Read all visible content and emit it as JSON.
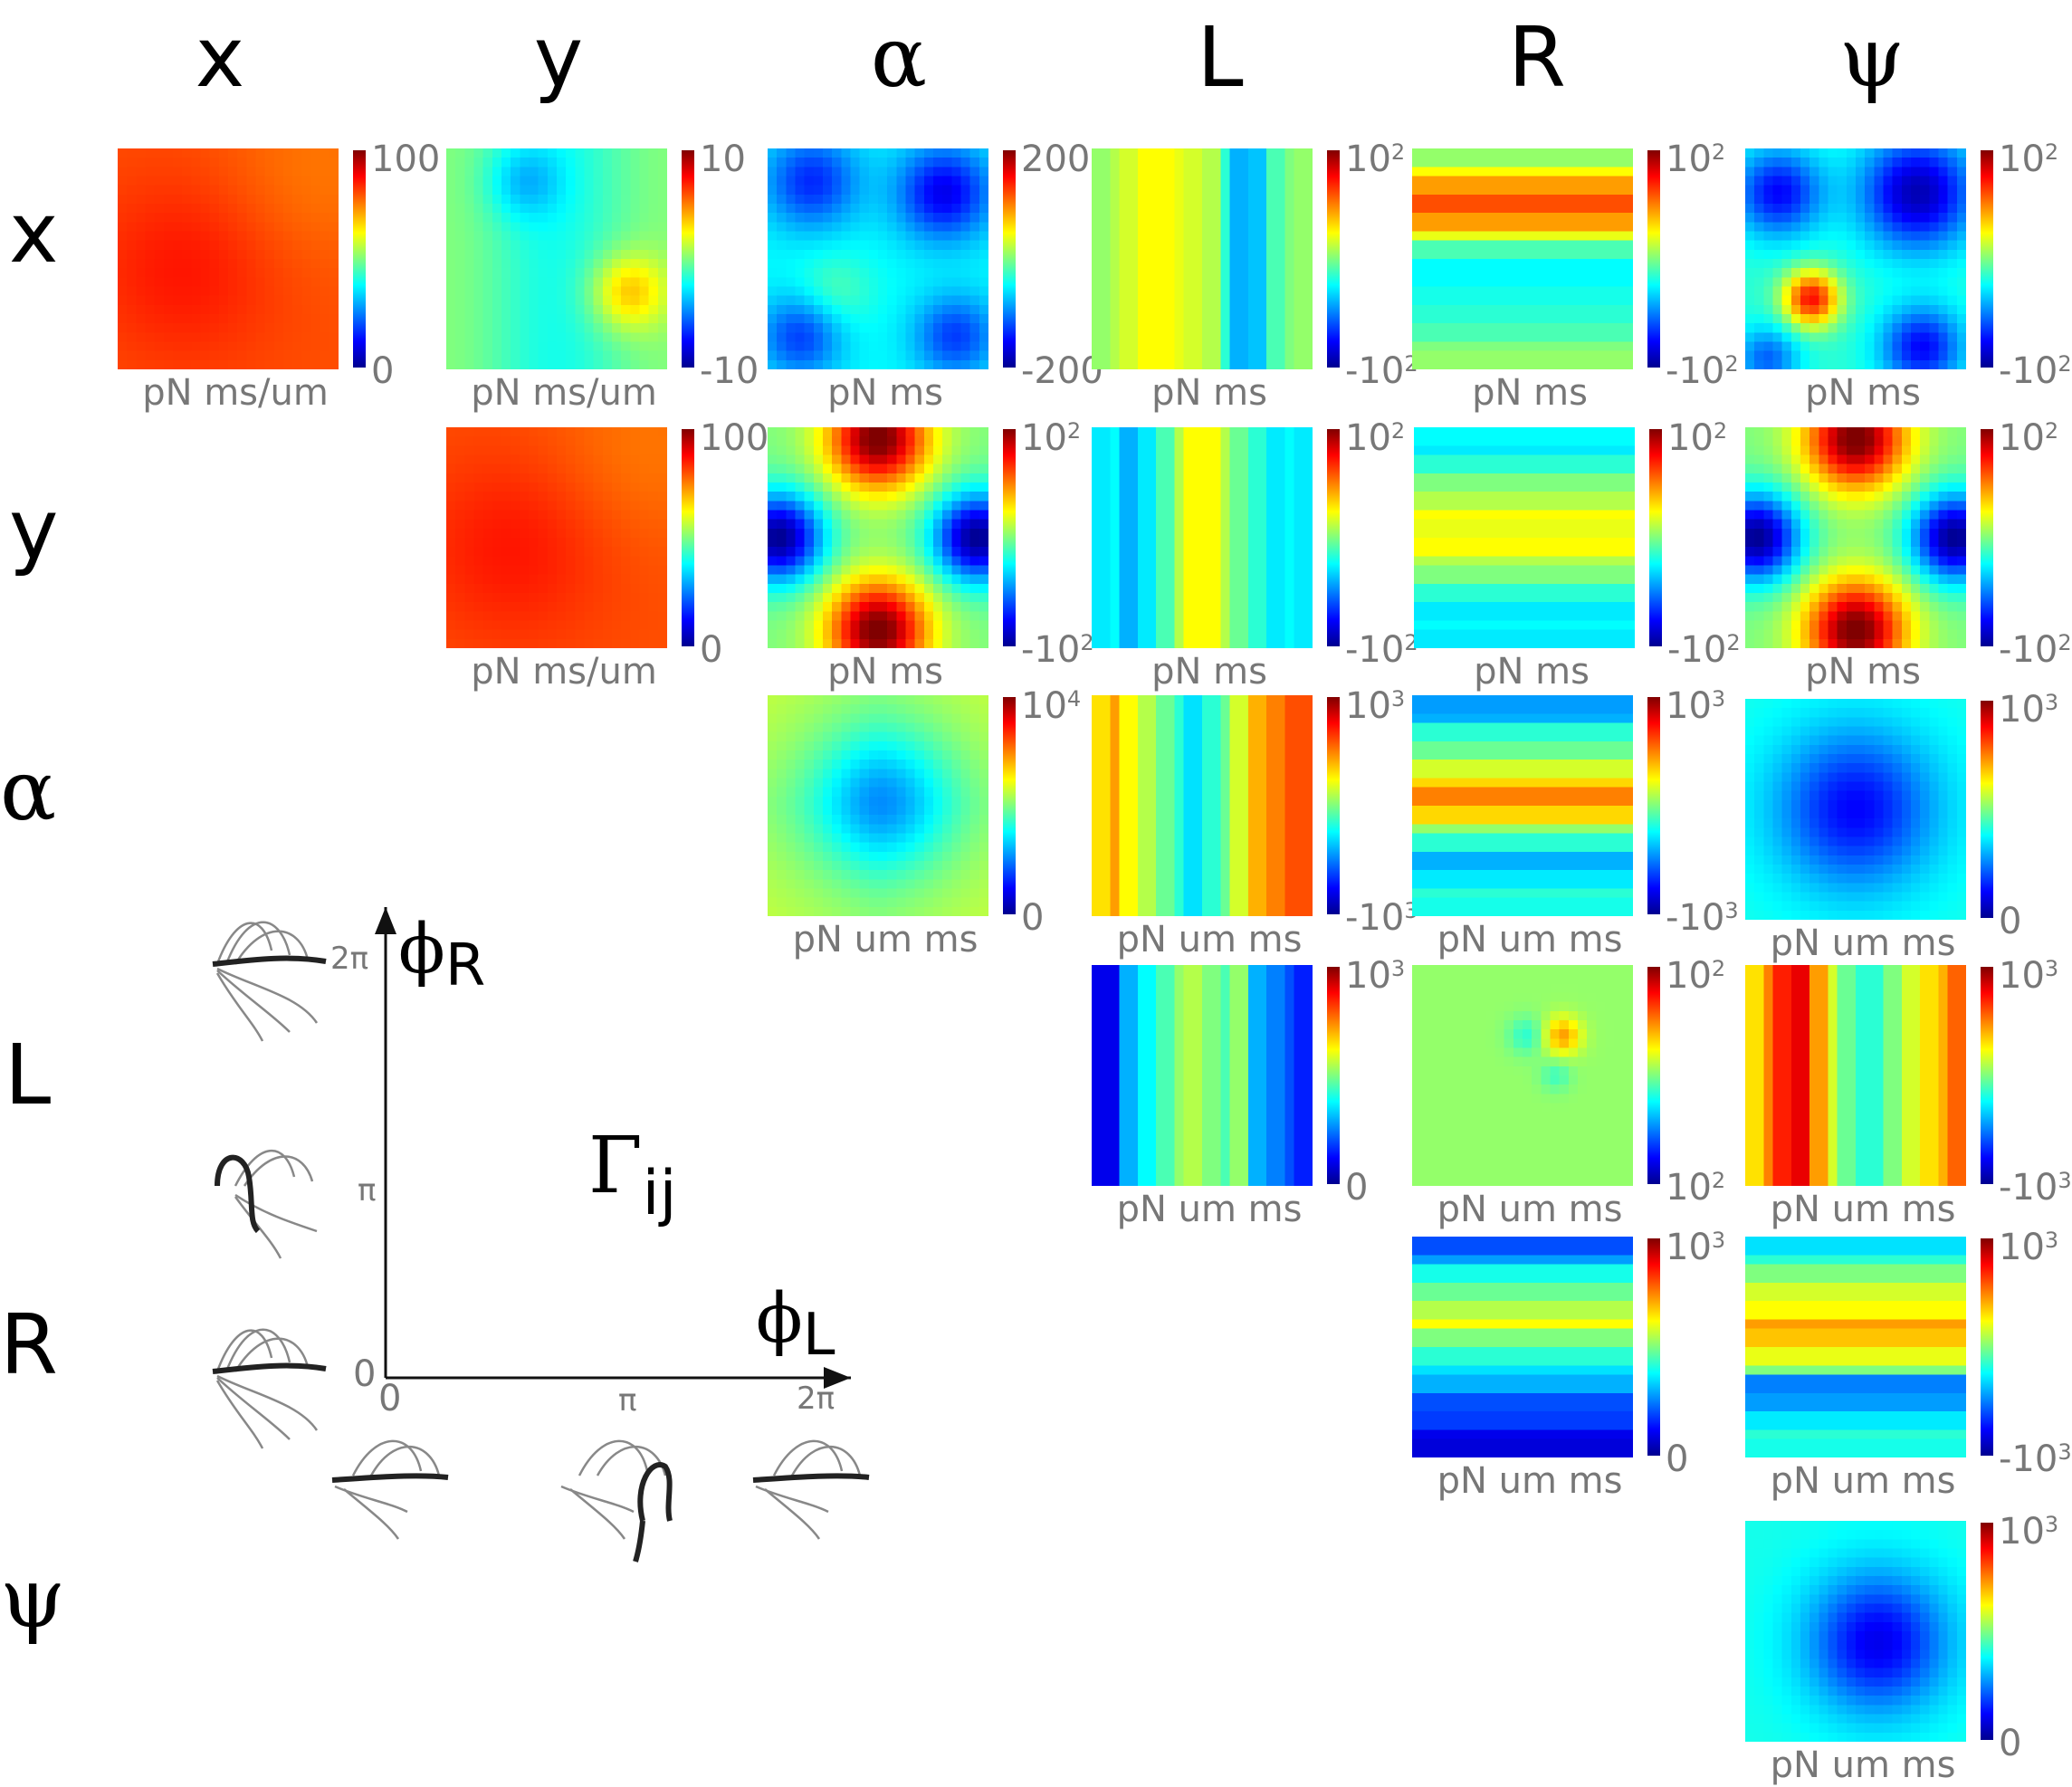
{
  "column_headers": [
    "x",
    "y",
    "α",
    "L",
    "R",
    "ψ"
  ],
  "row_headers": [
    "x",
    "y",
    "α",
    "L",
    "R",
    "ψ"
  ],
  "colors": {
    "colormap": [
      "#00008f",
      "#0000ff",
      "#00ffff",
      "#7fff7f",
      "#ffff00",
      "#ff0000",
      "#800000"
    ],
    "text_gray": "#777777"
  },
  "cells": [
    {
      "row": "x",
      "col": "x",
      "pattern": "uniform-high",
      "tick_max": "100",
      "tick_min": "0",
      "unit": "pN ms/um"
    },
    {
      "row": "x",
      "col": "y",
      "pattern": "x-small",
      "tick_max": "10",
      "tick_min": "-10",
      "unit": "pN ms/um"
    },
    {
      "row": "x",
      "col": "α",
      "pattern": "four-blob-low",
      "tick_max": "200",
      "tick_min": "-200",
      "unit": "pN ms"
    },
    {
      "row": "x",
      "col": "L",
      "pattern": "vertical-stripes-a",
      "tick_max": "10^2",
      "tick_min": "-10^2",
      "unit": "pN ms"
    },
    {
      "row": "x",
      "col": "R",
      "pattern": "horizontal-stripes-a",
      "tick_max": "10^2",
      "tick_min": "-10^2",
      "unit": "pN ms"
    },
    {
      "row": "x",
      "col": "ψ",
      "pattern": "center-hot-corners-cold",
      "tick_max": "10^2",
      "tick_min": "-10^2",
      "unit": "pN ms"
    },
    {
      "row": "y",
      "col": "y",
      "pattern": "uniform-high",
      "tick_max": "100",
      "tick_min": "0",
      "unit": "pN ms/um"
    },
    {
      "row": "y",
      "col": "α",
      "pattern": "saddle",
      "tick_max": "10^2",
      "tick_min": "-10^2",
      "unit": "pN ms"
    },
    {
      "row": "y",
      "col": "L",
      "pattern": "vertical-stripes-b",
      "tick_max": "10^2",
      "tick_min": "-10^2",
      "unit": "pN ms"
    },
    {
      "row": "y",
      "col": "R",
      "pattern": "horizontal-stripes-b",
      "tick_max": "10^2",
      "tick_min": "-10^2",
      "unit": "pN ms"
    },
    {
      "row": "y",
      "col": "ψ",
      "pattern": "saddle",
      "tick_max": "10^2",
      "tick_min": "-10^2",
      "unit": "pN ms"
    },
    {
      "row": "α",
      "col": "α",
      "pattern": "center-low",
      "tick_max": "10^4",
      "tick_min": "0",
      "unit": "pN um ms"
    },
    {
      "row": "α",
      "col": "L",
      "pattern": "vertical-stripes-c",
      "tick_max": "10^3",
      "tick_min": "-10^3",
      "unit": "pN um ms"
    },
    {
      "row": "α",
      "col": "R",
      "pattern": "horizontal-stripes-c",
      "tick_max": "10^3",
      "tick_min": "-10^3",
      "unit": "pN um ms"
    },
    {
      "row": "α",
      "col": "ψ",
      "pattern": "center-low-deep",
      "tick_max": "10^3",
      "tick_min": "0",
      "unit": "pN um ms"
    },
    {
      "row": "L",
      "col": "L",
      "pattern": "vertical-stripes-d",
      "tick_max": "10^3",
      "tick_min": "0",
      "unit": "pN um ms"
    },
    {
      "row": "L",
      "col": "R",
      "pattern": "flat-dipole",
      "tick_max": "10^2",
      "tick_min": "10^2",
      "unit": "pN um ms"
    },
    {
      "row": "L",
      "col": "ψ",
      "pattern": "vertical-stripes-e",
      "tick_max": "10^3",
      "tick_min": "-10^3",
      "unit": "pN um ms"
    },
    {
      "row": "R",
      "col": "R",
      "pattern": "horizontal-stripes-d",
      "tick_max": "10^3",
      "tick_min": "0",
      "unit": "pN um ms"
    },
    {
      "row": "R",
      "col": "ψ",
      "pattern": "horizontal-stripes-e",
      "tick_max": "10^3",
      "tick_min": "-10^3",
      "unit": "pN um ms"
    },
    {
      "row": "ψ",
      "col": "ψ",
      "pattern": "center-low-offset",
      "tick_max": "10^3",
      "tick_min": "0",
      "unit": "pN um ms"
    }
  ],
  "phase_diagram": {
    "x_axis_label": "ϕ",
    "x_axis_sub": "L",
    "y_axis_label": "ϕ",
    "y_axis_sub": "R",
    "x_ticks": [
      "0",
      "π",
      "2π"
    ],
    "y_ticks": [
      "0",
      "π",
      "2π"
    ],
    "center_label": "Γ",
    "center_sub": "ij"
  }
}
